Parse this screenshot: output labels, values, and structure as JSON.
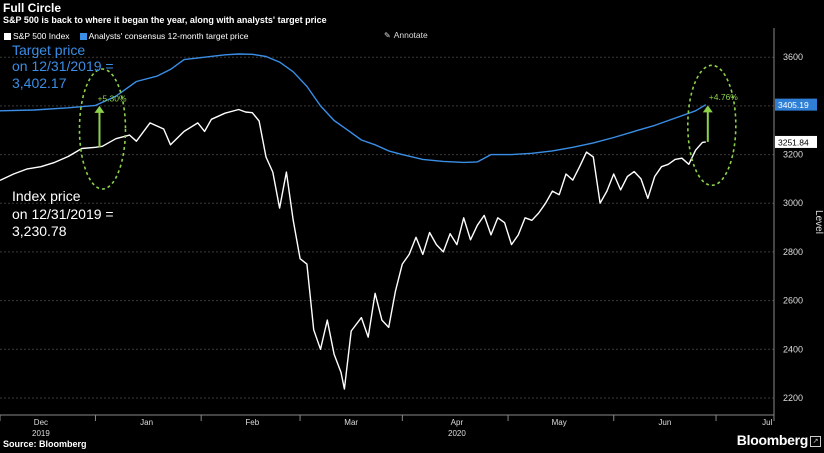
{
  "title": "Full Circle",
  "subtitle": "S&P 500 is back to where it began the year, along with analysts' target price",
  "legend": [
    {
      "name": "S&P 500 Index",
      "color": "#ffffff"
    },
    {
      "name": "Analysts' consensus 12-month target price",
      "color": "#3a8ee6"
    }
  ],
  "annotate_label": "Annotate",
  "source": "Source: Bloomberg",
  "brand": "Bloomberg",
  "callouts": {
    "target_text": [
      "Target price",
      "on 12/31/2019 =",
      "3,402.17"
    ],
    "index_text": [
      "Index price",
      "on 12/31/2019 =",
      "3,230.78"
    ],
    "left_pct": "+5.30%",
    "right_pct": "+4.76%",
    "highlight_color": "#8cd14a"
  },
  "chart_data": {
    "type": "line",
    "ylabel": "Level",
    "ylim": [
      2130,
      3720
    ],
    "yticks": [
      2200,
      2400,
      2600,
      2800,
      3000,
      3200,
      3400,
      3600
    ],
    "xlim": [
      0,
      227
    ],
    "xticks": [
      {
        "x": 12,
        "label": "Dec",
        "sub": "2019"
      },
      {
        "x": 43,
        "label": "Jan",
        "sub": ""
      },
      {
        "x": 74,
        "label": "Feb",
        "sub": ""
      },
      {
        "x": 103,
        "label": "Mar",
        "sub": ""
      },
      {
        "x": 134,
        "label": "Apr",
        "sub": "2020"
      },
      {
        "x": 164,
        "label": "May",
        "sub": ""
      },
      {
        "x": 195,
        "label": "Jun",
        "sub": ""
      },
      {
        "x": 225,
        "label": "Jul",
        "sub": ""
      }
    ],
    "last_values": [
      {
        "series": "Analysts' consensus 12-month target price",
        "value": "3405.19"
      },
      {
        "series": "S&P 500 Index",
        "value": "3251.84"
      }
    ],
    "series": [
      {
        "name": "S&P 500 Index",
        "color": "#ffffff",
        "points": [
          [
            0,
            3094
          ],
          [
            4,
            3120
          ],
          [
            8,
            3141
          ],
          [
            12,
            3150
          ],
          [
            16,
            3168
          ],
          [
            20,
            3192
          ],
          [
            24,
            3225
          ],
          [
            28,
            3230
          ],
          [
            30,
            3234
          ],
          [
            34,
            3265
          ],
          [
            38,
            3280
          ],
          [
            40,
            3255
          ],
          [
            44,
            3330
          ],
          [
            48,
            3305
          ],
          [
            50,
            3240
          ],
          [
            54,
            3295
          ],
          [
            58,
            3330
          ],
          [
            60,
            3295
          ],
          [
            62,
            3345
          ],
          [
            66,
            3370
          ],
          [
            70,
            3385
          ],
          [
            72,
            3375
          ],
          [
            74,
            3372
          ],
          [
            76,
            3338
          ],
          [
            78,
            3190
          ],
          [
            80,
            3128
          ],
          [
            82,
            2980
          ],
          [
            84,
            3128
          ],
          [
            86,
            2930
          ],
          [
            88,
            2772
          ],
          [
            90,
            2750
          ],
          [
            92,
            2480
          ],
          [
            94,
            2400
          ],
          [
            96,
            2520
          ],
          [
            98,
            2380
          ],
          [
            100,
            2305
          ],
          [
            101,
            2237
          ],
          [
            103,
            2475
          ],
          [
            106,
            2530
          ],
          [
            108,
            2450
          ],
          [
            110,
            2630
          ],
          [
            112,
            2520
          ],
          [
            114,
            2490
          ],
          [
            116,
            2640
          ],
          [
            118,
            2750
          ],
          [
            120,
            2790
          ],
          [
            122,
            2860
          ],
          [
            124,
            2790
          ],
          [
            126,
            2880
          ],
          [
            128,
            2830
          ],
          [
            130,
            2800
          ],
          [
            132,
            2875
          ],
          [
            134,
            2830
          ],
          [
            136,
            2940
          ],
          [
            138,
            2850
          ],
          [
            140,
            2910
          ],
          [
            142,
            2950
          ],
          [
            144,
            2870
          ],
          [
            146,
            2940
          ],
          [
            148,
            2920
          ],
          [
            150,
            2830
          ],
          [
            152,
            2870
          ],
          [
            154,
            2940
          ],
          [
            156,
            2930
          ],
          [
            158,
            2960
          ],
          [
            160,
            3000
          ],
          [
            162,
            3050
          ],
          [
            164,
            3035
          ],
          [
            166,
            3120
          ],
          [
            168,
            3095
          ],
          [
            170,
            3150
          ],
          [
            172,
            3210
          ],
          [
            174,
            3190
          ],
          [
            176,
            3000
          ],
          [
            178,
            3050
          ],
          [
            180,
            3120
          ],
          [
            182,
            3055
          ],
          [
            184,
            3110
          ],
          [
            186,
            3130
          ],
          [
            188,
            3100
          ],
          [
            190,
            3020
          ],
          [
            192,
            3110
          ],
          [
            194,
            3150
          ],
          [
            196,
            3160
          ],
          [
            198,
            3180
          ],
          [
            200,
            3185
          ],
          [
            202,
            3160
          ],
          [
            204,
            3218
          ],
          [
            206,
            3250
          ],
          [
            207,
            3252
          ]
        ]
      },
      {
        "name": "Analysts' consensus 12-month target price",
        "color": "#3a8ee6",
        "points": [
          [
            0,
            3380
          ],
          [
            10,
            3383
          ],
          [
            20,
            3392
          ],
          [
            28,
            3402
          ],
          [
            34,
            3440
          ],
          [
            40,
            3500
          ],
          [
            46,
            3522
          ],
          [
            50,
            3550
          ],
          [
            54,
            3590
          ],
          [
            60,
            3600
          ],
          [
            66,
            3610
          ],
          [
            70,
            3613
          ],
          [
            74,
            3612
          ],
          [
            78,
            3603
          ],
          [
            82,
            3580
          ],
          [
            86,
            3540
          ],
          [
            90,
            3480
          ],
          [
            94,
            3400
          ],
          [
            98,
            3340
          ],
          [
            102,
            3300
          ],
          [
            106,
            3260
          ],
          [
            110,
            3240
          ],
          [
            114,
            3215
          ],
          [
            118,
            3200
          ],
          [
            124,
            3180
          ],
          [
            130,
            3172
          ],
          [
            136,
            3168
          ],
          [
            140,
            3170
          ],
          [
            144,
            3200
          ],
          [
            150,
            3200
          ],
          [
            156,
            3205
          ],
          [
            162,
            3215
          ],
          [
            168,
            3230
          ],
          [
            174,
            3248
          ],
          [
            180,
            3270
          ],
          [
            186,
            3295
          ],
          [
            192,
            3320
          ],
          [
            198,
            3350
          ],
          [
            204,
            3380
          ],
          [
            207,
            3405
          ]
        ]
      }
    ]
  }
}
